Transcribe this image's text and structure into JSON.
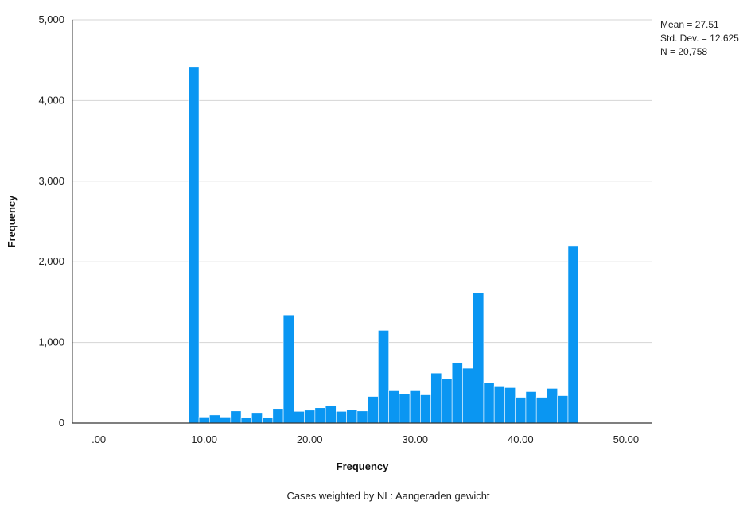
{
  "chart_data": {
    "type": "bar",
    "title": "",
    "xlabel": "Frequency",
    "ylabel": "Frequency",
    "xlim": [
      -2.5,
      52.5
    ],
    "ylim": [
      0,
      5000
    ],
    "x_ticks": [
      {
        "value": 0,
        "label": ".00"
      },
      {
        "value": 10,
        "label": "10.00"
      },
      {
        "value": 20,
        "label": "20.00"
      },
      {
        "value": 30,
        "label": "30.00"
      },
      {
        "value": 40,
        "label": "40.00"
      },
      {
        "value": 50,
        "label": "50.00"
      }
    ],
    "y_ticks": [
      {
        "value": 0,
        "label": "0"
      },
      {
        "value": 1000,
        "label": "1,000"
      },
      {
        "value": 2000,
        "label": "2,000"
      },
      {
        "value": 3000,
        "label": "3,000"
      },
      {
        "value": 4000,
        "label": "4,000"
      },
      {
        "value": 5000,
        "label": "5,000"
      }
    ],
    "grid": true,
    "bar_color": "#0a96f2",
    "bin_width": 1,
    "bins": [
      {
        "x": 9,
        "y": 4420
      },
      {
        "x": 10,
        "y": 75
      },
      {
        "x": 11,
        "y": 100
      },
      {
        "x": 12,
        "y": 75
      },
      {
        "x": 13,
        "y": 150
      },
      {
        "x": 14,
        "y": 70
      },
      {
        "x": 15,
        "y": 130
      },
      {
        "x": 16,
        "y": 70
      },
      {
        "x": 17,
        "y": 180
      },
      {
        "x": 18,
        "y": 1340
      },
      {
        "x": 19,
        "y": 145
      },
      {
        "x": 20,
        "y": 160
      },
      {
        "x": 21,
        "y": 190
      },
      {
        "x": 22,
        "y": 220
      },
      {
        "x": 23,
        "y": 145
      },
      {
        "x": 24,
        "y": 170
      },
      {
        "x": 25,
        "y": 150
      },
      {
        "x": 26,
        "y": 330
      },
      {
        "x": 27,
        "y": 1150
      },
      {
        "x": 28,
        "y": 400
      },
      {
        "x": 29,
        "y": 360
      },
      {
        "x": 30,
        "y": 400
      },
      {
        "x": 31,
        "y": 350
      },
      {
        "x": 32,
        "y": 620
      },
      {
        "x": 33,
        "y": 550
      },
      {
        "x": 34,
        "y": 750
      },
      {
        "x": 35,
        "y": 680
      },
      {
        "x": 36,
        "y": 1620
      },
      {
        "x": 37,
        "y": 500
      },
      {
        "x": 38,
        "y": 460
      },
      {
        "x": 39,
        "y": 440
      },
      {
        "x": 40,
        "y": 320
      },
      {
        "x": 41,
        "y": 390
      },
      {
        "x": 42,
        "y": 320
      },
      {
        "x": 43,
        "y": 430
      },
      {
        "x": 44,
        "y": 340
      },
      {
        "x": 45,
        "y": 2200
      }
    ],
    "stats": [
      "Mean = 27.51",
      "Std. Dev. = 12.625",
      "N = 20,758"
    ],
    "footnote": "Cases weighted by NL: Aangeraden gewicht"
  }
}
